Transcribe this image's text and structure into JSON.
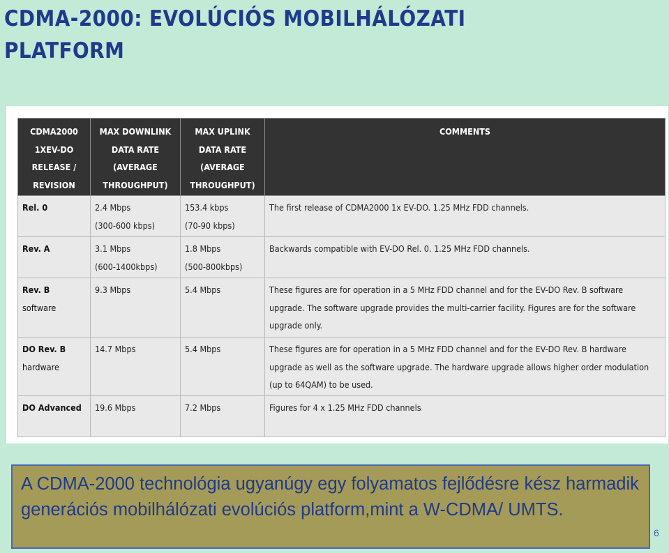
{
  "title": "CDMA-2000: EVOLÚCIÓS MOBILHÁLÓZATI PLATFORM",
  "table": {
    "headers": [
      "CDMA2000 1XEV-DO RELEASE / REVISION",
      "MAX DOWNLINK DATA RATE (AVERAGE THROUGHPUT)",
      "MAX UPLINK DATA RATE (AVERAGE THROUGHPUT)",
      "COMMENTS"
    ],
    "rows": [
      {
        "release": "Rel. 0",
        "release_sub": "",
        "downlink": "2.4 Mbps",
        "downlink_avg": "(300-600 kbps)",
        "uplink": "153.4 kbps",
        "uplink_avg": "(70-90 kbps)",
        "comment": "The first release of CDMA2000 1x EV-DO. 1.25 MHz FDD channels."
      },
      {
        "release": "Rev. A",
        "release_sub": "",
        "downlink": "3.1 Mbps",
        "downlink_avg": "(600-1400kbps)",
        "uplink": "1.8 Mbps",
        "uplink_avg": "(500-800kbps)",
        "comment": "Backwards compatible with EV-DO Rel. 0. 1.25 MHz FDD channels."
      },
      {
        "release": "Rev. B",
        "release_sub": "software",
        "downlink": "9.3 Mbps",
        "downlink_avg": "",
        "uplink": "5.4 Mbps",
        "uplink_avg": "",
        "comment": "These figures are for operation in a 5 MHz FDD channel and for the EV-DO Rev. B software upgrade. The software upgrade provides the multi-carrier facility. Figures are for the software upgrade only."
      },
      {
        "release": "DO Rev. B",
        "release_sub": "hardware",
        "downlink": "14.7 Mbps",
        "downlink_avg": "",
        "uplink": "5.4 Mbps",
        "uplink_avg": "",
        "comment": "These figures are for operation in a 5 MHz FDD channel and for the EV-DO Rev. B hardware upgrade as well as the software upgrade. The hardware upgrade allows higher order modulation (up to 64QAM) to be used."
      },
      {
        "release": "DO Advanced",
        "release_sub": "",
        "downlink": "19.6 Mbps",
        "downlink_avg": "",
        "uplink": "7.2 Mbps",
        "uplink_avg": "",
        "comment": "Figures for 4 x 1.25 MHz FDD channels"
      }
    ]
  },
  "callout": "A CDMA-2000 technológia ugyanúgy egy folyamatos fejlődésre kész harmadik generációs mobilhálózati evolúciós platform,mint a W-CDMA/ UMTS.",
  "slide_number": "6",
  "colors": {
    "background": "#c2ead6",
    "title": "#1f3a8c",
    "header_bg": "#333333",
    "cell_bg": "#e9e9e9",
    "callout_bg": "#a59b58",
    "callout_border": "#4a66b3"
  }
}
